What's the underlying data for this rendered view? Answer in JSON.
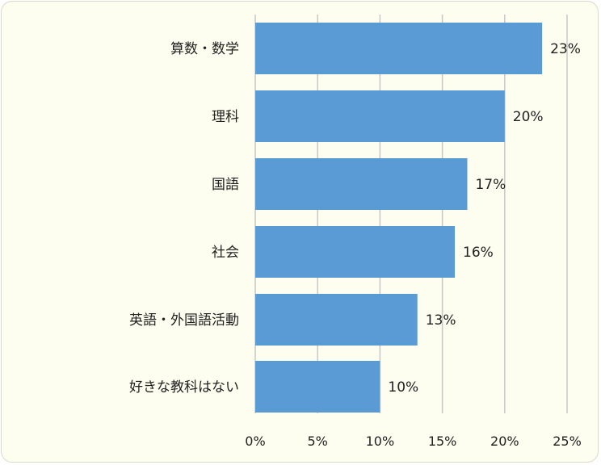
{
  "chart_data": {
    "type": "bar",
    "orientation": "horizontal",
    "categories": [
      "算数・数学",
      "理科",
      "国語",
      "社会",
      "英語・外国語活動",
      "好きな教科はない"
    ],
    "values": [
      23,
      20,
      17,
      16,
      13,
      10
    ],
    "value_labels": [
      "23%",
      "20%",
      "17%",
      "16%",
      "13%",
      "10%"
    ],
    "x_ticks": [
      "0%",
      "5%",
      "10%",
      "15%",
      "20%",
      "25%"
    ],
    "xlim": [
      0,
      25
    ],
    "grid": "vertical",
    "colors": {
      "bar": "#5b9bd5",
      "grid": "#c8c8c8",
      "background": "#fdfdf0"
    }
  }
}
